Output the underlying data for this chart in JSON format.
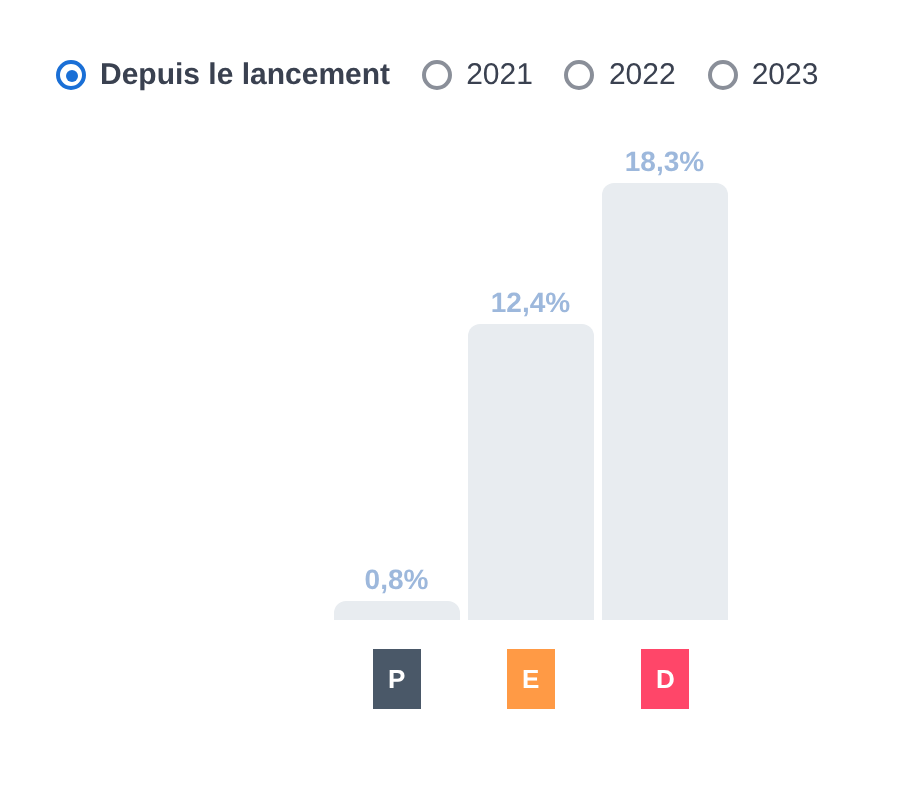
{
  "chart_data": {
    "type": "bar",
    "categories": [
      "P",
      "E",
      "D"
    ],
    "values": [
      0.8,
      12.4,
      18.3
    ],
    "color": "#e8ecf0",
    "data_labels": true,
    "value_labels": [
      "0,8%",
      "12,4%",
      "18,3%"
    ],
    "annotations": [
      "Depuis le lancement",
      "2021",
      "2022",
      "2023"
    ],
    "grid": false,
    "legend": false
  }
}
